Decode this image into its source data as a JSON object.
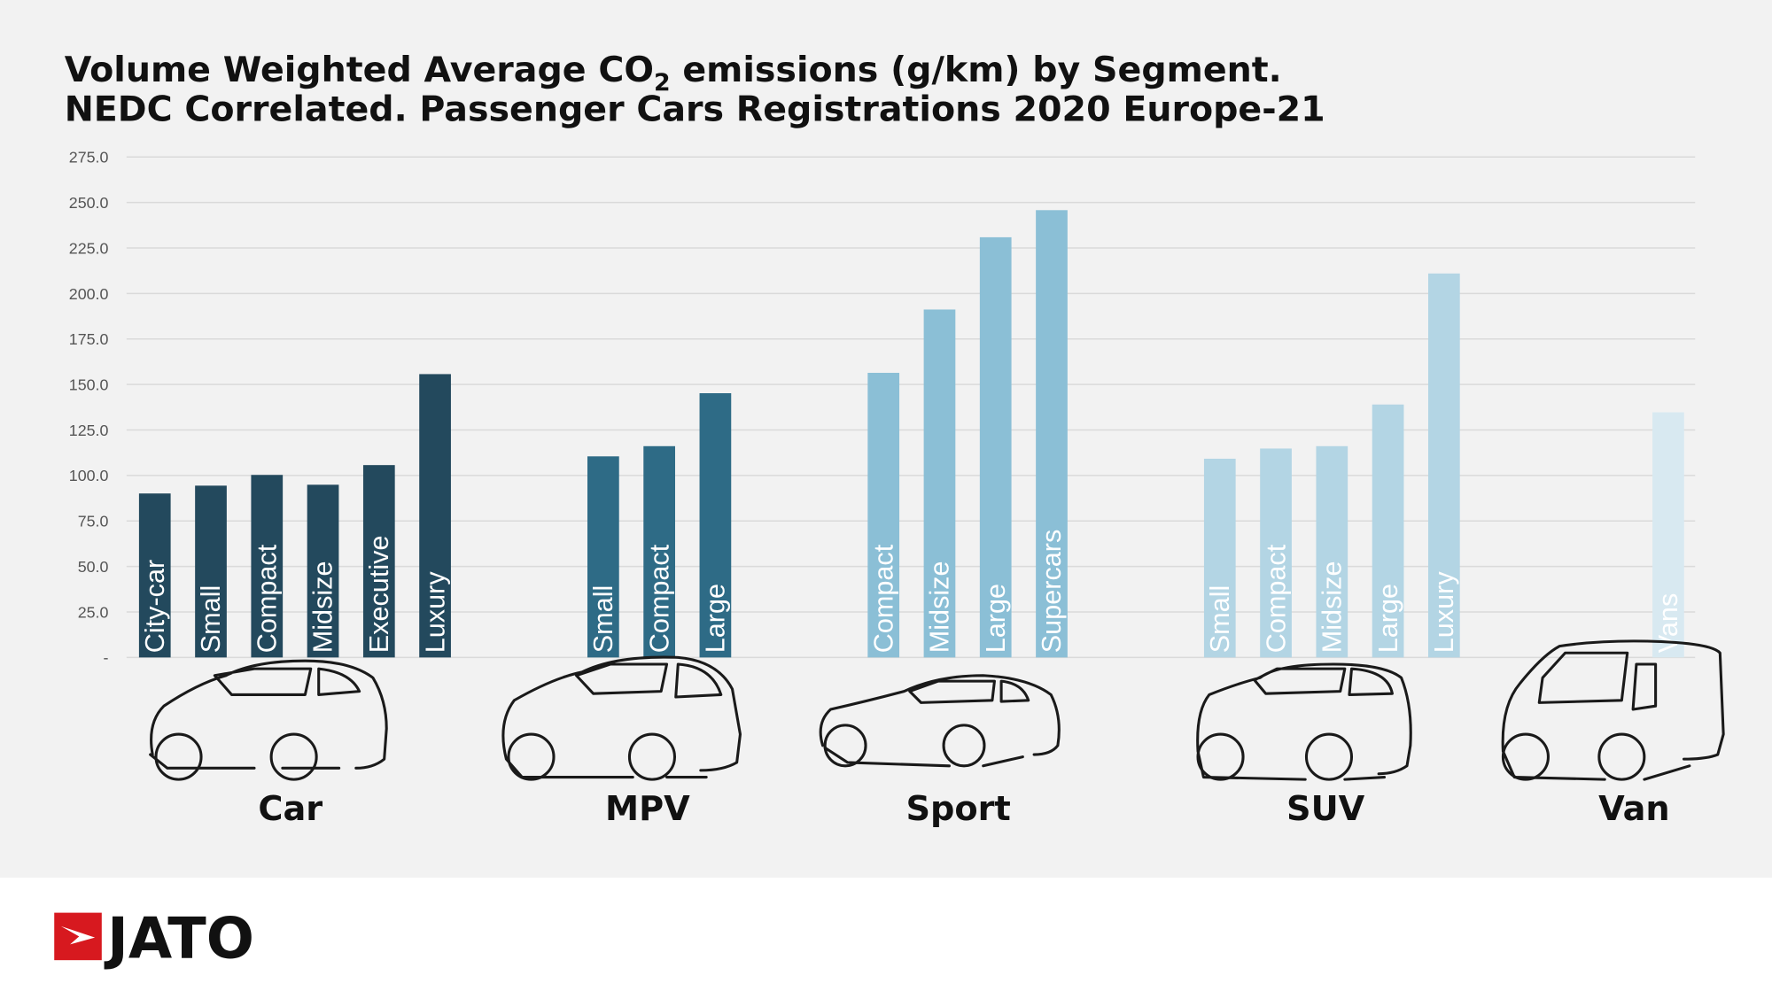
{
  "chart_data": {
    "type": "bar",
    "title_line1": "Volume Weighted Average CO",
    "title_sub": "2",
    "title_line1_rest": " emissions (g/km) by Segment.",
    "title_line2": "NEDC Correlated. Passenger Cars Registrations 2020 Europe-21",
    "ylim": [
      0,
      275
    ],
    "yticks": [
      "-",
      "25.0",
      "50.0",
      "75.0",
      "100.0",
      "125.0",
      "150.0",
      "175.0",
      "200.0",
      "225.0",
      "250.0",
      "275.0"
    ],
    "grid": true,
    "groups": [
      {
        "name": "Car",
        "color": "#23495d",
        "icon": "hatchback-car-icon",
        "categories": [
          "City-car",
          "Small",
          "Compact",
          "Midsize",
          "Executive",
          "Luxury"
        ],
        "values": [
          90.1,
          94.4,
          100.3,
          94.9,
          105.7,
          155.7
        ]
      },
      {
        "name": "MPV",
        "color": "#2e6b86",
        "icon": "mpv-car-icon",
        "categories": [
          "Small",
          "Compact",
          "Large"
        ],
        "values": [
          110.5,
          116.1,
          145.2
        ]
      },
      {
        "name": "Sport",
        "color": "#8bbfd6",
        "icon": "sports-car-icon",
        "categories": [
          "Compact",
          "Midsize",
          "Large",
          "Supercars"
        ],
        "values": [
          156.4,
          191.2,
          230.9,
          245.8
        ]
      },
      {
        "name": "SUV",
        "color": "#b3d5e4",
        "icon": "suv-icon",
        "categories": [
          "Small",
          "Compact",
          "Midsize",
          "Large",
          "Luxury"
        ],
        "values": [
          109.2,
          114.8,
          116.1,
          139.0,
          211.0
        ]
      },
      {
        "name": "Van",
        "color": "#d8e9f1",
        "icon": "van-icon",
        "categories": [
          "Vans"
        ],
        "values": [
          134.7
        ]
      }
    ]
  },
  "footer": {
    "logo_text": "JATO",
    "logo_color": "#d7191f"
  }
}
